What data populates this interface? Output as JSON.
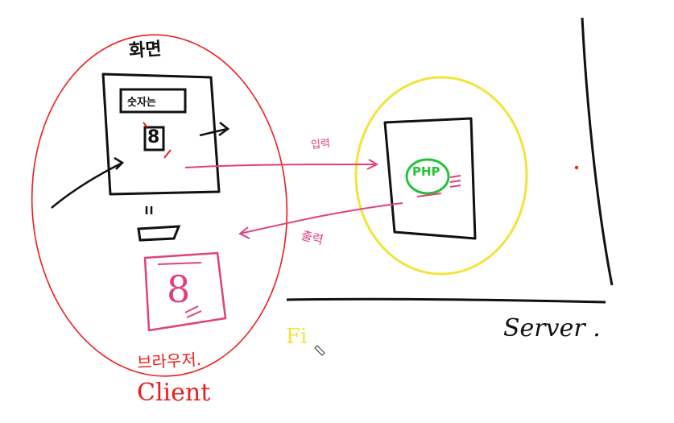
{
  "labels": {
    "screen": "화면",
    "field": "숫자는",
    "digit": "8",
    "input": "입력",
    "output": "출력",
    "processor": "PHP",
    "result": "8",
    "browser": "브라우저.",
    "client": "Client",
    "server": "Server .",
    "annotation": "Fi"
  },
  "colors": {
    "ink": "#111111",
    "red": "#ee1c1c",
    "pink": "#e0407f",
    "yellow": "#f3e33a",
    "green": "#22c33a"
  }
}
